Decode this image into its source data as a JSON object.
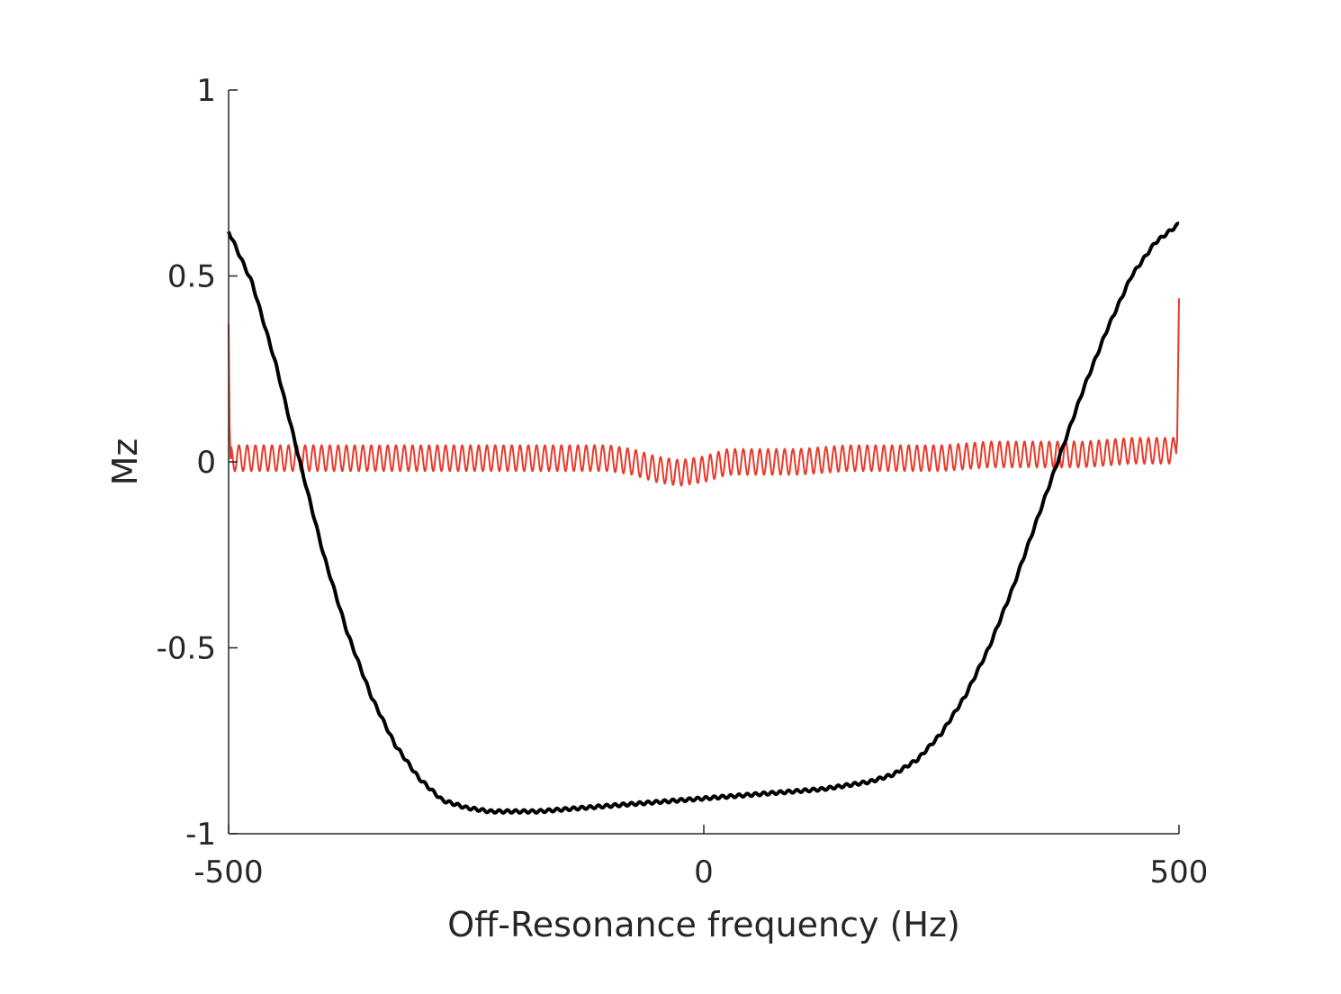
{
  "chart_data": {
    "type": "line",
    "title": "",
    "xlabel": "Off-Resonance frequency (Hz)",
    "ylabel": "Mz",
    "xlim": [
      -500,
      500
    ],
    "ylim": [
      -1,
      1
    ],
    "grid": false,
    "legend": "none",
    "xticks": [
      -500,
      0,
      500
    ],
    "xtick_labels": [
      "-500",
      "0",
      "500"
    ],
    "yticks": [
      -1,
      -0.5,
      0,
      0.5,
      1
    ],
    "ytick_labels": [
      "-1",
      "-0.5",
      "0",
      "0.5",
      "1"
    ],
    "series": [
      {
        "name": "Mz (black)",
        "color": "#000000",
        "x": [
          -500,
          -475,
          -450,
          -425,
          -400,
          -375,
          -350,
          -325,
          -300,
          -275,
          -250,
          -225,
          -200,
          -175,
          -150,
          -125,
          -100,
          -75,
          -50,
          -25,
          0,
          25,
          50,
          75,
          100,
          125,
          150,
          175,
          200,
          225,
          250,
          275,
          300,
          325,
          350,
          375,
          400,
          425,
          450,
          475,
          500
        ],
        "y": [
          0.62,
          0.48,
          0.26,
          0.0,
          -0.25,
          -0.46,
          -0.63,
          -0.76,
          -0.85,
          -0.91,
          -0.93,
          -0.94,
          -0.94,
          -0.94,
          -0.935,
          -0.93,
          -0.925,
          -0.92,
          -0.915,
          -0.91,
          -0.905,
          -0.9,
          -0.895,
          -0.89,
          -0.885,
          -0.88,
          -0.87,
          -0.86,
          -0.84,
          -0.8,
          -0.73,
          -0.63,
          -0.5,
          -0.34,
          -0.16,
          0.02,
          0.2,
          0.36,
          0.5,
          0.59,
          0.64
        ]
      },
      {
        "name": "Mz (red)",
        "color": "#e8392a",
        "x": [
          -500,
          -499,
          -498,
          -450,
          -400,
          -350,
          -300,
          -250,
          -200,
          -150,
          -100,
          -75,
          -50,
          -25,
          0,
          25,
          50,
          100,
          150,
          200,
          250,
          300,
          350,
          400,
          450,
          495,
          498,
          500
        ],
        "y": [
          0.37,
          0.1,
          0.01,
          0.01,
          0.01,
          0.01,
          0.01,
          0.01,
          0.01,
          0.01,
          0.01,
          0.0,
          -0.02,
          -0.03,
          -0.02,
          0.0,
          0.0,
          0.0,
          0.01,
          0.01,
          0.01,
          0.02,
          0.02,
          0.02,
          0.03,
          0.03,
          0.05,
          0.44
        ],
        "oscillation_amplitude": 0.035,
        "oscillation_period_hz": 8.7
      }
    ]
  }
}
